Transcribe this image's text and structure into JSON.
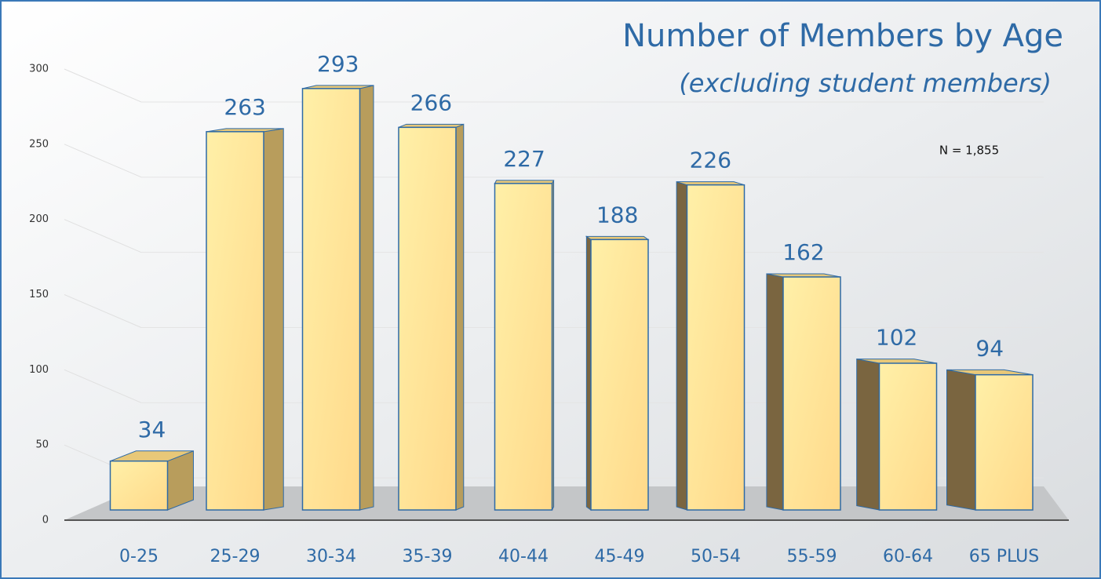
{
  "chart_data": {
    "type": "bar",
    "title": "Number of Members by Age",
    "subtitle": "(excluding student members)",
    "annotation": "N = 1,855",
    "categories": [
      "0-25",
      "25-29",
      "30-34",
      "35-39",
      "40-44",
      "45-49",
      "50-54",
      "55-59",
      "60-64",
      "65 PLUS"
    ],
    "values": [
      34,
      263,
      293,
      266,
      227,
      188,
      226,
      162,
      102,
      94
    ],
    "color": "#ffe08a",
    "ylim": [
      0,
      300
    ],
    "yticks": [
      0,
      50,
      100,
      150,
      200,
      250,
      300
    ],
    "grid": true
  }
}
